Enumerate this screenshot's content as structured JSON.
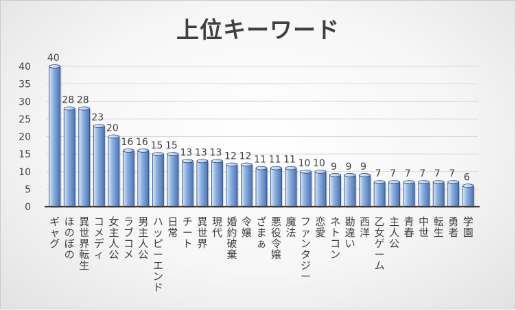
{
  "chart_data": {
    "type": "bar",
    "title": "上位キーワード",
    "categories": [
      "ギャグ",
      "ほのぼの",
      "異世界転生",
      "コメディ",
      "女主人公",
      "ラブコメ",
      "男主人公",
      "ハッピーエンド",
      "日常",
      "チート",
      "異世界",
      "現代",
      "婚約破棄",
      "令嬢",
      "ざまぁ",
      "悪役令嬢",
      "魔法",
      "ファンタジー",
      "恋愛",
      "ネトコン",
      "勘違い",
      "西洋",
      "乙女ゲーム",
      "主人公",
      "青春",
      "中世",
      "転生",
      "勇者",
      "学園"
    ],
    "values": [
      40,
      28,
      28,
      23,
      20,
      16,
      16,
      15,
      15,
      13,
      13,
      13,
      12,
      12,
      11,
      11,
      11,
      10,
      10,
      9,
      9,
      9,
      7,
      7,
      7,
      7,
      7,
      7,
      6
    ],
    "ylim": [
      0,
      40
    ],
    "yticks": [
      0,
      5,
      10,
      15,
      20,
      25,
      30,
      35,
      40
    ],
    "grid": true,
    "legend": "none",
    "colors": {
      "bar_light": "#dbe8f8",
      "bar_mid": "#8eb1e0",
      "bar_dark": "#4a74b8",
      "bar_edge": "#1f3f7a",
      "text": "#404040"
    }
  }
}
